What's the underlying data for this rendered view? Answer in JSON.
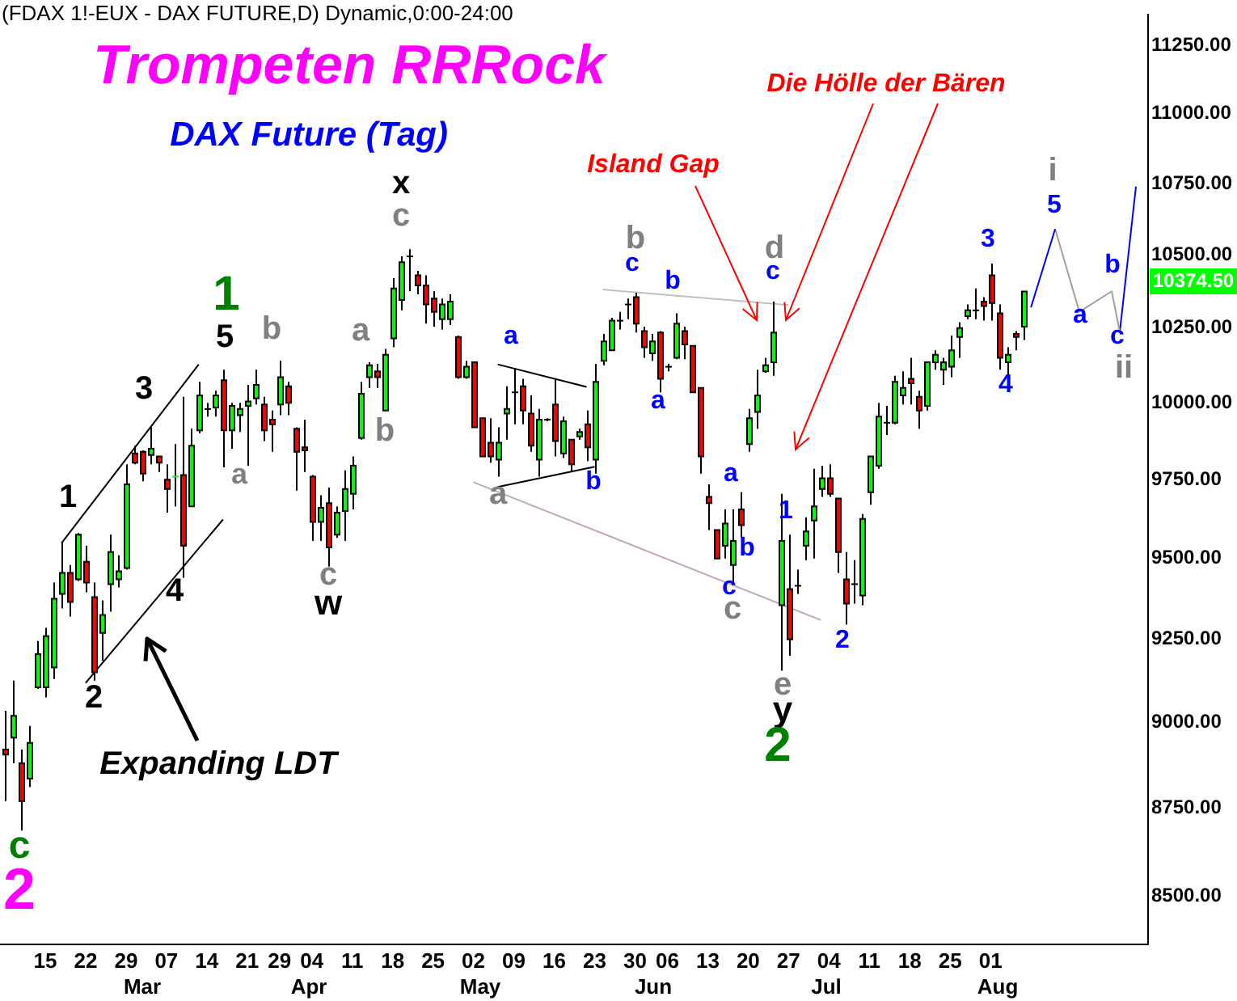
{
  "chart_data": {
    "type": "candlestick",
    "title": "Trompeten RRRock",
    "subtitle": "DAX Future (Tag)",
    "categories": [
      null,
      null,
      null,
      null,
      null,
      "15",
      null,
      null,
      null,
      null,
      "22",
      null,
      null,
      null,
      null,
      "29",
      null,
      null,
      null,
      null,
      "07",
      null,
      null,
      null,
      null,
      "14",
      null,
      null,
      null,
      null,
      "21",
      null,
      null,
      null,
      "29",
      null,
      null,
      null,
      "04",
      null,
      null,
      null,
      null,
      "11",
      null,
      null,
      null,
      null,
      "18",
      null,
      null,
      null,
      null,
      "25",
      null,
      null,
      null,
      null,
      "02",
      null,
      null,
      null,
      null,
      "09",
      null,
      null,
      null,
      null,
      "16",
      null,
      null,
      null,
      null,
      "23",
      null,
      null,
      null,
      null,
      "30",
      null,
      null,
      null,
      "06",
      null,
      null,
      null,
      null,
      "13",
      null,
      null,
      null,
      null,
      "20",
      null,
      null,
      null,
      null,
      "27",
      null,
      null,
      null,
      null,
      "04",
      null,
      null,
      null,
      null,
      "11",
      null,
      null,
      null,
      null,
      "18",
      null,
      null,
      null,
      null,
      "25",
      null,
      null,
      null,
      null,
      "01",
      null,
      null,
      null,
      null,
      null,
      null,
      null,
      null,
      null,
      null,
      null,
      null,
      null,
      null,
      null,
      null,
      null,
      null,
      null
    ],
    "ohlc": [
      [
        8920,
        9035,
        8770,
        8905
      ],
      [
        8955,
        9125,
        8880,
        9020
      ],
      [
        8880,
        8920,
        8685,
        8770
      ],
      [
        8835,
        8990,
        8810,
        8940
      ],
      [
        9105,
        9245,
        9100,
        9205
      ],
      [
        9105,
        9285,
        9075,
        9260
      ],
      [
        9165,
        9425,
        9130,
        9375
      ],
      [
        9390,
        9550,
        9345,
        9455
      ],
      [
        9455,
        9480,
        9320,
        9365
      ],
      [
        9435,
        9580,
        9430,
        9575
      ],
      [
        9490,
        9540,
        9395,
        9425
      ],
      [
        9380,
        9425,
        9125,
        9150
      ],
      [
        9270,
        9370,
        9185,
        9325
      ],
      [
        9420,
        9575,
        9335,
        9520
      ],
      [
        9435,
        9510,
        9410,
        9460
      ],
      [
        9470,
        9800,
        9465,
        9735
      ],
      [
        9835,
        9860,
        9800,
        9805
      ],
      [
        9840,
        9845,
        9745,
        9770
      ],
      [
        9830,
        9920,
        9800,
        9850
      ],
      [
        9825,
        9825,
        9775,
        9805
      ],
      [
        9750,
        9800,
        9645,
        9720
      ],
      [
        9755,
        9865,
        9665,
        9760
      ],
      [
        9765,
        10020,
        9440,
        9540
      ],
      [
        9665,
        9915,
        9665,
        9860
      ],
      [
        9910,
        10070,
        9900,
        10025
      ],
      [
        9980,
        10000,
        9955,
        9980
      ],
      [
        9985,
        10040,
        9955,
        10025
      ],
      [
        10075,
        10110,
        9790,
        9910
      ],
      [
        9910,
        10000,
        9850,
        9990
      ],
      [
        9960,
        10000,
        9905,
        9980
      ],
      [
        9990,
        10060,
        9795,
        10005
      ],
      [
        10015,
        10110,
        9995,
        10060
      ],
      [
        9995,
        10020,
        9875,
        9910
      ],
      [
        9945,
        9975,
        9840,
        9930
      ],
      [
        9995,
        10140,
        9960,
        10085
      ],
      [
        10055,
        10070,
        9960,
        10000
      ],
      [
        9915,
        9920,
        9715,
        9840
      ],
      [
        9855,
        9945,
        9775,
        9845
      ],
      [
        9760,
        9765,
        9555,
        9615
      ],
      [
        9615,
        9700,
        9555,
        9660
      ],
      [
        9675,
        9725,
        9475,
        9535
      ],
      [
        9575,
        9665,
        9565,
        9645
      ],
      [
        9650,
        9780,
        9555,
        9720
      ],
      [
        9705,
        9825,
        9655,
        9795
      ],
      [
        9885,
        10070,
        9880,
        10030
      ],
      [
        10085,
        10135,
        10050,
        10125
      ],
      [
        10105,
        10130,
        10050,
        10085
      ],
      [
        9975,
        10180,
        9975,
        10160
      ],
      [
        10215,
        10420,
        10185,
        10385
      ],
      [
        10345,
        10495,
        10310,
        10475
      ],
      [
        10495,
        10520,
        10375,
        10495
      ],
      [
        10430,
        10445,
        10365,
        10395
      ],
      [
        10395,
        10430,
        10265,
        10330
      ],
      [
        10350,
        10375,
        10255,
        10305
      ],
      [
        10280,
        10350,
        10245,
        10330
      ],
      [
        10280,
        10365,
        10260,
        10340
      ],
      [
        10220,
        10225,
        10080,
        10085
      ],
      [
        10085,
        10140,
        10080,
        10120
      ],
      [
        10135,
        10135,
        9920,
        9920
      ],
      [
        9950,
        9950,
        9825,
        9825
      ],
      [
        9870,
        9950,
        9805,
        9825
      ],
      [
        9815,
        9920,
        9760,
        9870
      ],
      [
        9965,
        10055,
        9880,
        9980
      ],
      [
        10035,
        10115,
        9930,
        10035
      ],
      [
        10055,
        10080,
        9930,
        9975
      ],
      [
        9965,
        10025,
        9840,
        9860
      ],
      [
        9815,
        9980,
        9760,
        9945
      ],
      [
        9945,
        9950,
        9940,
        9945
      ],
      [
        9995,
        10080,
        9825,
        9875
      ],
      [
        9835,
        9955,
        9820,
        9940
      ],
      [
        9880,
        9880,
        9775,
        9800
      ],
      [
        9890,
        9915,
        9880,
        9905
      ],
      [
        9930,
        9975,
        9810,
        9855
      ],
      [
        9815,
        10130,
        9770,
        10070
      ],
      [
        10140,
        10230,
        10125,
        10205
      ],
      [
        10175,
        10285,
        10175,
        10275
      ],
      [
        10275,
        10305,
        10245,
        10275
      ],
      [
        10330,
        10350,
        10280,
        10330
      ],
      [
        10355,
        10370,
        10235,
        10265
      ],
      [
        10240,
        10255,
        10150,
        10185
      ],
      [
        10165,
        10230,
        10140,
        10205
      ],
      [
        10235,
        10240,
        10035,
        10080
      ],
      [
        10120,
        10130,
        10105,
        10120
      ],
      [
        10150,
        10300,
        10145,
        10265
      ],
      [
        10240,
        10255,
        10145,
        10195
      ],
      [
        10190,
        10190,
        10035,
        10035
      ],
      [
        10050,
        10050,
        9770,
        9825
      ],
      [
        9695,
        9735,
        9590,
        9675
      ],
      [
        9590,
        9590,
        9500,
        9500
      ],
      [
        9540,
        9655,
        9500,
        9610
      ],
      [
        9480,
        9655,
        9425,
        9555
      ],
      [
        9655,
        9710,
        9565,
        9605
      ],
      [
        9865,
        9980,
        9840,
        9950
      ],
      [
        9970,
        10110,
        9915,
        10025
      ],
      [
        10105,
        10150,
        10100,
        10125
      ],
      [
        10135,
        10340,
        10090,
        10235
      ],
      [
        9355,
        9705,
        9155,
        9555
      ],
      [
        9405,
        9575,
        9200,
        9250
      ],
      [
        9415,
        9465,
        9390,
        9415
      ],
      [
        9540,
        9630,
        9495,
        9585
      ],
      [
        9620,
        9785,
        9500,
        9665
      ],
      [
        9720,
        9795,
        9695,
        9755
      ],
      [
        9755,
        9800,
        9695,
        9705
      ],
      [
        9690,
        9690,
        9455,
        9520
      ],
      [
        9435,
        9520,
        9295,
        9360
      ],
      [
        9420,
        9495,
        9360,
        9420
      ],
      [
        9385,
        9640,
        9355,
        9625
      ],
      [
        9710,
        9825,
        9670,
        9825
      ],
      [
        9795,
        10000,
        9785,
        9955
      ],
      [
        9935,
        9990,
        9895,
        9935
      ],
      [
        9935,
        10090,
        9930,
        10070
      ],
      [
        10025,
        10105,
        9995,
        10050
      ],
      [
        10080,
        10150,
        9995,
        10065
      ],
      [
        10020,
        10040,
        9915,
        9975
      ],
      [
        9990,
        10135,
        9975,
        10135
      ],
      [
        10135,
        10175,
        10110,
        10160
      ],
      [
        10110,
        10150,
        10060,
        10135
      ],
      [
        10120,
        10225,
        10085,
        10175
      ],
      [
        10220,
        10270,
        10150,
        10250
      ],
      [
        10290,
        10330,
        10280,
        10310
      ],
      [
        10310,
        10385,
        10280,
        10310
      ],
      [
        10340,
        10355,
        10275,
        10325
      ],
      [
        10430,
        10470,
        10275,
        10335
      ],
      [
        10300,
        10330,
        10110,
        10150
      ],
      [
        10135,
        10185,
        10090,
        10160
      ],
      [
        10230,
        10240,
        10175,
        10220
      ],
      [
        10255,
        10375,
        10210,
        10374.5
      ],
      null,
      null,
      null,
      null,
      null,
      null,
      null,
      null,
      null,
      null,
      null,
      null,
      null,
      null,
      null
    ],
    "colors": [
      "#ff0000",
      "#00ff00",
      "#ff0000",
      "#00ff00",
      "#00ff00",
      "#00ff00",
      "#00ff00",
      "#00ff00",
      "#ff0000",
      "#00ff00",
      "#ff0000",
      "#ff0000",
      "#00ff00",
      "#00ff00",
      "#00ff00",
      "#00ff00",
      "#ff0000",
      "#ff0000",
      "#00ff00",
      "#ff0000",
      "#ff0000",
      "#00ff00",
      "#ff0000",
      "#00ff00",
      "#00ff00",
      "#000000",
      "#00ff00",
      "#ff0000",
      "#00ff00",
      "#00ff00",
      "#00ff00",
      "#00ff00",
      "#ff0000",
      "#ff0000",
      "#00ff00",
      "#ff0000",
      "#ff0000",
      "#ff0000",
      "#ff0000",
      "#00ff00",
      "#ff0000",
      "#00ff00",
      "#00ff00",
      "#00ff00",
      "#00ff00",
      "#00ff00",
      "#ff0000",
      "#00ff00",
      "#00ff00",
      "#00ff00",
      "#000000",
      "#ff0000",
      "#ff0000",
      "#ff0000",
      "#00ff00",
      "#00ff00",
      "#ff0000",
      "#00ff00",
      "#ff0000",
      "#ff0000",
      "#ff0000",
      "#00ff00",
      "#00ff00",
      "#000000",
      "#ff0000",
      "#ff0000",
      "#00ff00",
      "#000000",
      "#ff0000",
      "#00ff00",
      "#ff0000",
      "#00ff00",
      "#ff0000",
      "#00ff00",
      "#00ff00",
      "#00ff00",
      "#000000",
      "#000000",
      "#ff0000",
      "#ff0000",
      "#00ff00",
      "#ff0000",
      "#000000",
      "#00ff00",
      "#ff0000",
      "#ff0000",
      "#ff0000",
      "#ff0000",
      "#ff0000",
      "#00ff00",
      "#00ff00",
      "#ff0000",
      "#00ff00",
      "#00ff00",
      "#00ff00",
      "#00ff00",
      "#00ff00",
      "#ff0000",
      "#000000",
      "#00ff00",
      "#00ff00",
      "#00ff00",
      "#ff0000",
      "#ff0000",
      "#ff0000",
      "#000000",
      "#00ff00",
      "#00ff00",
      "#00ff00",
      "#000000",
      "#00ff00",
      "#00ff00",
      "#ff0000",
      "#ff0000",
      "#00ff00",
      "#00ff00",
      "#00ff00",
      "#00ff00",
      "#00ff00",
      "#00ff00",
      "#000000",
      "#ff0000",
      "#ff0000",
      "#ff0000",
      "#00ff00",
      "#ff0000",
      "#00ff00",
      null,
      null,
      null,
      null,
      null,
      null,
      null,
      null,
      null,
      null,
      null,
      null,
      null,
      null,
      null
    ],
    "series": [
      {
        "type": "line",
        "color": "#000000",
        "values": [
          null,
          null,
          null,
          null,
          null,
          null,
          null,
          9548,
          null,
          null,
          null,
          null,
          null,
          null,
          null,
          null,
          null,
          null,
          null,
          null,
          null,
          null,
          null,
          null,
          10128,
          null,
          null,
          null,
          null,
          null,
          null,
          null,
          null,
          null,
          null,
          null,
          null,
          null,
          null,
          null,
          null,
          null,
          null,
          null,
          null,
          null,
          null,
          null,
          null,
          null,
          null,
          null,
          null,
          null,
          null,
          null,
          null,
          null,
          null,
          null,
          null,
          null,
          null,
          null,
          null,
          null,
          null,
          null,
          null,
          null,
          null,
          null,
          null,
          null,
          null,
          null,
          null,
          null,
          null,
          null,
          null,
          null,
          null,
          null,
          null,
          null,
          null,
          null,
          null,
          null,
          null,
          null,
          null,
          null,
          null,
          null,
          null,
          null,
          null,
          null,
          null,
          null,
          null,
          null,
          null,
          null,
          null,
          null,
          null,
          null,
          null,
          null,
          null,
          null,
          null,
          null,
          null,
          null,
          null,
          null,
          null,
          null,
          null,
          null,
          null,
          null,
          null,
          null,
          null,
          null,
          null,
          null,
          null,
          null,
          null,
          null,
          null,
          null,
          null,
          null,
          null,
          null
        ]
      },
      {
        "type": "line",
        "color": "#000000",
        "values": [
          null,
          null,
          null,
          null,
          null,
          null,
          null,
          null,
          null,
          null,
          9118,
          null,
          null,
          null,
          null,
          null,
          null,
          null,
          null,
          null,
          null,
          null,
          null,
          null,
          null,
          null,
          null,
          9623,
          null,
          null,
          null,
          null,
          null,
          null,
          null,
          null,
          null,
          null,
          null,
          null,
          null,
          null,
          null,
          null,
          null,
          null,
          null,
          null,
          null,
          null,
          null,
          null,
          null,
          null,
          null,
          null,
          null,
          null,
          null,
          null,
          null,
          null,
          null,
          null,
          null,
          null,
          null,
          null,
          null,
          null,
          null,
          null,
          null,
          null,
          null,
          null,
          null,
          null,
          null,
          null,
          null,
          null,
          null,
          null,
          null,
          null,
          null,
          null,
          null,
          null,
          null,
          null,
          null,
          null,
          null,
          null,
          null,
          null,
          null,
          null,
          null,
          null,
          null,
          null,
          null,
          null,
          null,
          null,
          null,
          null,
          null,
          null,
          null,
          null,
          null,
          null,
          null,
          null,
          null,
          null,
          null,
          null,
          null,
          null,
          null,
          null,
          null,
          null,
          null,
          null,
          null,
          null,
          null,
          null,
          null,
          null,
          null,
          null,
          null,
          null,
          null,
          null
        ]
      },
      {
        "type": "line",
        "color": "#000000",
        "values": [
          null,
          null,
          null,
          null,
          null,
          null,
          null,
          null,
          null,
          null,
          null,
          null,
          null,
          null,
          null,
          null,
          null,
          null,
          null,
          null,
          null,
          null,
          null,
          null,
          null,
          null,
          null,
          null,
          null,
          null,
          null,
          null,
          null,
          null,
          null,
          null,
          null,
          null,
          null,
          null,
          null,
          null,
          null,
          null,
          null,
          null,
          null,
          null,
          null,
          null,
          null,
          null,
          null,
          null,
          null,
          null,
          null,
          null,
          null,
          null,
          null,
          10128,
          null,
          null,
          null,
          null,
          null,
          null,
          null,
          null,
          null,
          null,
          10053,
          null,
          null,
          null,
          null,
          null,
          null,
          null,
          null,
          null,
          null,
          null,
          null,
          null,
          null,
          null,
          null,
          null,
          null,
          null,
          null,
          null,
          null,
          null,
          null,
          null,
          null,
          null,
          null,
          null,
          null,
          null,
          null,
          null,
          null,
          null,
          null,
          null,
          null,
          null,
          null,
          null,
          null,
          null,
          null,
          null,
          null,
          null,
          null,
          null,
          null,
          null,
          null,
          null,
          null,
          null,
          null,
          null,
          null,
          null,
          null,
          null,
          null,
          null,
          null,
          null,
          null,
          null,
          null,
          null
        ]
      },
      {
        "type": "line",
        "color": "#000000",
        "values": [
          null,
          null,
          null,
          null,
          null,
          null,
          null,
          null,
          null,
          null,
          null,
          null,
          null,
          null,
          null,
          null,
          null,
          null,
          null,
          null,
          null,
          null,
          null,
          null,
          null,
          null,
          null,
          null,
          null,
          null,
          null,
          null,
          null,
          null,
          null,
          null,
          null,
          null,
          null,
          null,
          null,
          null,
          null,
          null,
          null,
          null,
          null,
          null,
          null,
          null,
          null,
          null,
          null,
          null,
          null,
          null,
          null,
          null,
          null,
          null,
          null,
          9727,
          null,
          null,
          null,
          null,
          null,
          null,
          null,
          null,
          null,
          null,
          null,
          9792,
          null,
          null,
          null,
          null,
          null,
          null,
          null,
          null,
          null,
          null,
          null,
          null,
          null,
          null,
          null,
          null,
          null,
          null,
          null,
          null,
          null,
          null,
          null,
          null,
          null,
          null,
          null,
          null,
          null,
          null,
          null,
          null,
          null,
          null,
          null,
          null,
          null,
          null,
          null,
          null,
          null,
          null,
          null,
          null,
          null,
          null,
          null,
          null,
          null,
          null,
          null,
          null,
          null,
          null,
          null,
          null,
          null,
          null,
          null,
          null,
          null,
          null,
          null,
          null,
          null,
          null,
          null,
          null
        ]
      },
      {
        "type": "line",
        "color": "#c0a8c0",
        "values": [
          null,
          null,
          null,
          null,
          null,
          null,
          null,
          null,
          null,
          null,
          null,
          null,
          null,
          null,
          null,
          null,
          null,
          null,
          null,
          null,
          null,
          null,
          null,
          null,
          null,
          null,
          null,
          null,
          null,
          null,
          null,
          null,
          null,
          null,
          null,
          null,
          null,
          null,
          null,
          null,
          null,
          null,
          null,
          null,
          null,
          null,
          null,
          null,
          null,
          null,
          null,
          null,
          null,
          null,
          null,
          null,
          null,
          null,
          9742,
          null,
          null,
          null,
          null,
          null,
          null,
          null,
          null,
          null,
          null,
          null,
          null,
          null,
          null,
          null,
          null,
          null,
          null,
          null,
          null,
          null,
          null,
          null,
          null,
          null,
          null,
          null,
          null,
          null,
          null,
          null,
          null,
          null,
          null,
          null,
          null,
          null,
          null,
          null,
          null,
          null,
          null,
          9309,
          null,
          null,
          null,
          null,
          null,
          null,
          null,
          null,
          null,
          null,
          null,
          null,
          null,
          null,
          null,
          null,
          null,
          null,
          null,
          null,
          null,
          null,
          null,
          null,
          null,
          null,
          null,
          null,
          null,
          null,
          null,
          null,
          null,
          null,
          null,
          null,
          null,
          null,
          null,
          null
        ]
      },
      {
        "type": "line",
        "color": "#c0c0c0",
        "values": [
          null,
          null,
          null,
          null,
          null,
          null,
          null,
          null,
          null,
          null,
          null,
          null,
          null,
          null,
          null,
          null,
          null,
          null,
          null,
          null,
          null,
          null,
          null,
          null,
          null,
          null,
          null,
          null,
          null,
          null,
          null,
          null,
          null,
          null,
          null,
          null,
          null,
          null,
          null,
          null,
          null,
          null,
          null,
          null,
          null,
          null,
          null,
          null,
          null,
          null,
          null,
          null,
          null,
          null,
          null,
          null,
          null,
          null,
          null,
          null,
          null,
          null,
          null,
          null,
          null,
          null,
          null,
          null,
          null,
          null,
          null,
          null,
          null,
          null,
          10381,
          null,
          null,
          null,
          null,
          null,
          null,
          null,
          null,
          null,
          null,
          null,
          null,
          null,
          null,
          null,
          null,
          null,
          null,
          null,
          null,
          null,
          null,
          10328,
          null,
          null,
          null,
          null,
          null,
          null,
          null,
          null,
          null,
          null,
          null,
          null,
          null,
          null,
          null,
          null,
          null,
          null,
          null,
          null,
          null,
          null,
          null,
          null,
          null,
          null,
          null,
          null,
          null,
          null,
          null,
          null,
          null,
          null,
          null,
          null,
          null,
          null,
          null,
          null,
          null,
          null,
          null,
          null
        ]
      },
      {
        "type": "line",
        "color": "#0000ff",
        "values": [
          null,
          null,
          null,
          null,
          null,
          null,
          null,
          null,
          null,
          null,
          null,
          null,
          null,
          null,
          null,
          null,
          null,
          null,
          null,
          null,
          null,
          null,
          null,
          null,
          null,
          null,
          null,
          null,
          null,
          null,
          null,
          null,
          null,
          null,
          null,
          null,
          null,
          null,
          null,
          null,
          null,
          null,
          null,
          null,
          null,
          null,
          null,
          null,
          null,
          null,
          null,
          null,
          null,
          null,
          null,
          null,
          null,
          null,
          null,
          null,
          null,
          null,
          null,
          null,
          null,
          null,
          null,
          null,
          null,
          null,
          null,
          null,
          null,
          null,
          null,
          null,
          null,
          null,
          null,
          null,
          null,
          null,
          null,
          null,
          null,
          null,
          null,
          null,
          null,
          null,
          null,
          null,
          null,
          null,
          null,
          null,
          null,
          null,
          null,
          null,
          null,
          null,
          null,
          null,
          null,
          null,
          null,
          null,
          null,
          null,
          null,
          null,
          null,
          null,
          null,
          null,
          null,
          null,
          null,
          null,
          null,
          null,
          null,
          null,
          null,
          null,
          null,
          10320,
          null,
          null,
          10590,
          null,
          null,
          null,
          null,
          null,
          null,
          null,
          null,
          null,
          null,
          null
        ]
      },
      {
        "type": "line",
        "color": "#a0a0a0",
        "values": [
          null,
          null,
          null,
          null,
          null,
          null,
          null,
          null,
          null,
          null,
          null,
          null,
          null,
          null,
          null,
          null,
          null,
          null,
          null,
          null,
          null,
          null,
          null,
          null,
          null,
          null,
          null,
          null,
          null,
          null,
          null,
          null,
          null,
          null,
          null,
          null,
          null,
          null,
          null,
          null,
          null,
          null,
          null,
          null,
          null,
          null,
          null,
          null,
          null,
          null,
          null,
          null,
          null,
          null,
          null,
          null,
          null,
          null,
          null,
          null,
          null,
          null,
          null,
          null,
          null,
          null,
          null,
          null,
          null,
          null,
          null,
          null,
          null,
          null,
          null,
          null,
          null,
          null,
          null,
          null,
          null,
          null,
          null,
          null,
          null,
          null,
          null,
          null,
          null,
          null,
          null,
          null,
          null,
          null,
          null,
          null,
          null,
          null,
          null,
          null,
          null,
          null,
          null,
          null,
          null,
          null,
          null,
          null,
          null,
          null,
          null,
          null,
          null,
          null,
          null,
          null,
          null,
          null,
          null,
          null,
          null,
          null,
          null,
          null,
          null,
          null,
          null,
          null,
          null,
          null,
          10590,
          null,
          null,
          10305,
          null,
          null,
          null,
          10375,
          10237,
          null,
          null,
          null
        ]
      },
      {
        "type": "line",
        "color": "#0000ff",
        "values": [
          null,
          null,
          null,
          null,
          null,
          null,
          null,
          null,
          null,
          null,
          null,
          null,
          null,
          null,
          null,
          null,
          null,
          null,
          null,
          null,
          null,
          null,
          null,
          null,
          null,
          null,
          null,
          null,
          null,
          null,
          null,
          null,
          null,
          null,
          null,
          null,
          null,
          null,
          null,
          null,
          null,
          null,
          null,
          null,
          null,
          null,
          null,
          null,
          null,
          null,
          null,
          null,
          null,
          null,
          null,
          null,
          null,
          null,
          null,
          null,
          null,
          null,
          null,
          null,
          null,
          null,
          null,
          null,
          null,
          null,
          null,
          null,
          null,
          null,
          null,
          null,
          null,
          null,
          null,
          null,
          null,
          null,
          null,
          null,
          null,
          null,
          null,
          null,
          null,
          null,
          null,
          null,
          null,
          null,
          null,
          null,
          null,
          null,
          null,
          null,
          null,
          null,
          null,
          null,
          null,
          null,
          null,
          null,
          null,
          null,
          null,
          null,
          null,
          null,
          null,
          null,
          null,
          null,
          null,
          null,
          null,
          null,
          null,
          null,
          null,
          null,
          null,
          null,
          null,
          null,
          null,
          null,
          null,
          null,
          null,
          null,
          null,
          null,
          10237,
          null,
          10740,
          null
        ]
      }
    ],
    "ylim": [
      8365,
      11365
    ],
    "yticks": [
      {
        "value": 8500,
        "label": "8500.00"
      },
      {
        "value": 8750,
        "label": "8750.00"
      },
      {
        "value": 9000,
        "label": "9000.00"
      },
      {
        "value": 9250,
        "label": "9250.00"
      },
      {
        "value": 9500,
        "label": "9500.00"
      },
      {
        "value": 9750,
        "label": "9750.00"
      },
      {
        "value": 10000,
        "label": "10000.00"
      },
      {
        "value": 10250,
        "label": "10250.00"
      },
      {
        "value": 10500,
        "label": "10500.00"
      },
      {
        "value": 10750,
        "label": "10750.00"
      },
      {
        "value": 11000,
        "label": "11000.00"
      },
      {
        "value": 11250,
        "label": "11250.00"
      }
    ],
    "log": true,
    "marker": "none",
    "annotations": [
      "(FDAX 1!-EUX - DAX FUTURE,D) Dynamic,0:00-24:00",
      "Mar",
      "Apr",
      "May",
      "Jun",
      "Jul",
      "Aug",
      "Island Gap",
      "Die Hölle der Bären",
      "Expanding LDT",
      "c",
      "2",
      "1",
      "2",
      "3",
      "4",
      "5",
      "1",
      "b",
      "a",
      "a",
      "b",
      "c",
      "w",
      "x",
      "c",
      "a",
      "a",
      "b",
      "b",
      "c",
      "b",
      "a",
      "d",
      "c",
      "a",
      "b",
      "c",
      "c",
      "1",
      "e",
      "y",
      "2",
      "2",
      "3",
      "4",
      "i",
      "5",
      "a",
      "b",
      "c",
      "ii",
      "10374.50"
    ]
  }
}
